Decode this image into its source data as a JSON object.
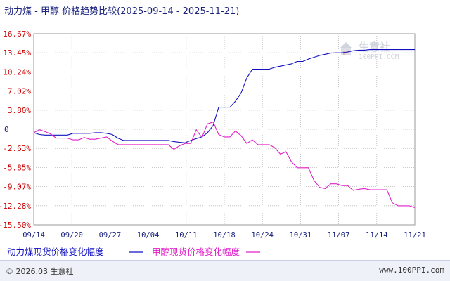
{
  "title": "动力煤 - 甲醇 价格趋势比较(2025-09-14 - 2025-11-21)",
  "watermark": {
    "name": "生意社",
    "url": "100PPI.COM"
  },
  "footer": {
    "copyright": "© 2026.03 生意社",
    "site": "www.100PPI.com"
  },
  "colors": {
    "series1": "#1010c0",
    "series2": "#e020c8",
    "positive_tick": "#cc0000",
    "negative_tick": "#cc0000",
    "zero_tick": "#1a237e",
    "grid": "#b8b8b8"
  },
  "chart_data": {
    "type": "line",
    "title": "动力煤 - 甲醇 价格趋势比较(2025-09-14 - 2025-11-21)",
    "xlabel": "",
    "ylabel": "",
    "x_ticks": [
      "09/14",
      "09/20",
      "09/27",
      "10/04",
      "10/11",
      "10/18",
      "10/24",
      "10/31",
      "11/07",
      "11/14",
      "11/21"
    ],
    "y_ticks": [
      "16.67%",
      "13.45%",
      "10.24%",
      "7.02%",
      "3.80%",
      "0",
      "-2.63%",
      "-5.85%",
      "-9.07%",
      "-12.28%",
      "-15.50%"
    ],
    "ylim": [
      -15.5,
      16.67
    ],
    "xlim": [
      "2025-09-14",
      "2025-11-21"
    ],
    "grid": true,
    "legend_position": "bottom-left",
    "series": [
      {
        "name": "动力煤现货价格变化幅度",
        "color": "#1010c0",
        "points": [
          [
            "2025-09-14",
            0.0
          ],
          [
            "2025-09-15",
            -0.3
          ],
          [
            "2025-09-16",
            -0.4
          ],
          [
            "2025-09-17",
            -0.4
          ],
          [
            "2025-09-18",
            -0.4
          ],
          [
            "2025-09-19",
            -0.4
          ],
          [
            "2025-09-20",
            -0.4
          ],
          [
            "2025-09-21",
            -0.1
          ],
          [
            "2025-09-22",
            -0.1
          ],
          [
            "2025-09-23",
            -0.1
          ],
          [
            "2025-09-24",
            -0.1
          ],
          [
            "2025-09-25",
            0.0
          ],
          [
            "2025-09-26",
            0.0
          ],
          [
            "2025-09-27",
            -0.1
          ],
          [
            "2025-09-28",
            -0.3
          ],
          [
            "2025-09-29",
            -0.9
          ],
          [
            "2025-09-30",
            -1.3
          ],
          [
            "2025-10-01",
            -1.3
          ],
          [
            "2025-10-04",
            -1.3
          ],
          [
            "2025-10-08",
            -1.3
          ],
          [
            "2025-10-09",
            -1.5
          ],
          [
            "2025-10-10",
            -1.6
          ],
          [
            "2025-10-11",
            -1.7
          ],
          [
            "2025-10-12",
            -1.3
          ],
          [
            "2025-10-13",
            -1.0
          ],
          [
            "2025-10-14",
            -0.7
          ],
          [
            "2025-10-15",
            0.0
          ],
          [
            "2025-10-16",
            1.2
          ],
          [
            "2025-10-17",
            4.3
          ],
          [
            "2025-10-18",
            4.3
          ],
          [
            "2025-10-19",
            4.3
          ],
          [
            "2025-10-20",
            5.3
          ],
          [
            "2025-10-21",
            6.7
          ],
          [
            "2025-10-22",
            9.2
          ],
          [
            "2025-10-23",
            10.7
          ],
          [
            "2025-10-24",
            10.7
          ],
          [
            "2025-10-25",
            10.7
          ],
          [
            "2025-10-26",
            10.7
          ],
          [
            "2025-10-27",
            11.0
          ],
          [
            "2025-10-28",
            11.2
          ],
          [
            "2025-10-29",
            11.4
          ],
          [
            "2025-10-30",
            11.6
          ],
          [
            "2025-10-31",
            12.0
          ],
          [
            "2025-11-01",
            12.0
          ],
          [
            "2025-11-02",
            12.4
          ],
          [
            "2025-11-03",
            12.7
          ],
          [
            "2025-11-04",
            13.0
          ],
          [
            "2025-11-05",
            13.2
          ],
          [
            "2025-11-06",
            13.4
          ],
          [
            "2025-11-07",
            13.45
          ],
          [
            "2025-11-08",
            13.45
          ],
          [
            "2025-11-09",
            13.6
          ],
          [
            "2025-11-10",
            13.8
          ],
          [
            "2025-11-11",
            13.9
          ],
          [
            "2025-11-12",
            13.9
          ],
          [
            "2025-11-13",
            14.0
          ],
          [
            "2025-11-14",
            14.0
          ],
          [
            "2025-11-17",
            14.0
          ],
          [
            "2025-11-21",
            14.0
          ]
        ]
      },
      {
        "name": "甲醇现货价格变化幅度",
        "color": "#e020c8",
        "points": [
          [
            "2025-09-14",
            0.0
          ],
          [
            "2025-09-15",
            0.5
          ],
          [
            "2025-09-16",
            0.2
          ],
          [
            "2025-09-17",
            -0.2
          ],
          [
            "2025-09-18",
            -0.9
          ],
          [
            "2025-09-19",
            -0.9
          ],
          [
            "2025-09-20",
            -0.9
          ],
          [
            "2025-09-21",
            -1.2
          ],
          [
            "2025-09-22",
            -1.2
          ],
          [
            "2025-09-23",
            -0.8
          ],
          [
            "2025-09-24",
            -1.1
          ],
          [
            "2025-09-25",
            -1.1
          ],
          [
            "2025-09-26",
            -0.9
          ],
          [
            "2025-09-27",
            -0.7
          ],
          [
            "2025-09-28",
            -1.4
          ],
          [
            "2025-09-29",
            -2.0
          ],
          [
            "2025-09-30",
            -2.0
          ],
          [
            "2025-10-04",
            -2.0
          ],
          [
            "2025-10-08",
            -2.0
          ],
          [
            "2025-10-09",
            -2.8
          ],
          [
            "2025-10-10",
            -2.2
          ],
          [
            "2025-10-11",
            -1.8
          ],
          [
            "2025-10-12",
            -1.8
          ],
          [
            "2025-10-13",
            0.5
          ],
          [
            "2025-10-14",
            -0.8
          ],
          [
            "2025-10-15",
            1.5
          ],
          [
            "2025-10-16",
            1.8
          ],
          [
            "2025-10-17",
            -0.3
          ],
          [
            "2025-10-18",
            -0.7
          ],
          [
            "2025-10-19",
            -0.7
          ],
          [
            "2025-10-20",
            0.3
          ],
          [
            "2025-10-21",
            -0.5
          ],
          [
            "2025-10-22",
            -1.8
          ],
          [
            "2025-10-23",
            -1.2
          ],
          [
            "2025-10-24",
            -2.0
          ],
          [
            "2025-10-25",
            -2.0
          ],
          [
            "2025-10-26",
            -2.0
          ],
          [
            "2025-10-27",
            -2.5
          ],
          [
            "2025-10-28",
            -3.6
          ],
          [
            "2025-10-29",
            -3.2
          ],
          [
            "2025-10-30",
            -4.9
          ],
          [
            "2025-10-31",
            -5.9
          ],
          [
            "2025-11-01",
            -5.9
          ],
          [
            "2025-11-02",
            -5.9
          ],
          [
            "2025-11-03",
            -8.0
          ],
          [
            "2025-11-04",
            -9.2
          ],
          [
            "2025-11-05",
            -9.4
          ],
          [
            "2025-11-06",
            -8.6
          ],
          [
            "2025-11-07",
            -8.6
          ],
          [
            "2025-11-08",
            -8.9
          ],
          [
            "2025-11-09",
            -8.9
          ],
          [
            "2025-11-10",
            -9.7
          ],
          [
            "2025-11-11",
            -9.5
          ],
          [
            "2025-11-12",
            -9.4
          ],
          [
            "2025-11-13",
            -9.6
          ],
          [
            "2025-11-14",
            -9.6
          ],
          [
            "2025-11-16",
            -9.6
          ],
          [
            "2025-11-17",
            -11.8
          ],
          [
            "2025-11-18",
            -12.3
          ],
          [
            "2025-11-19",
            -12.3
          ],
          [
            "2025-11-20",
            -12.3
          ],
          [
            "2025-11-21",
            -12.6
          ]
        ]
      }
    ]
  }
}
